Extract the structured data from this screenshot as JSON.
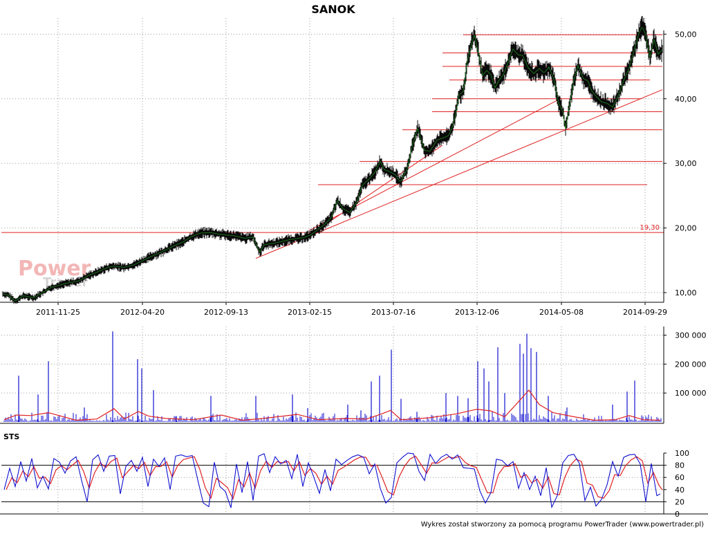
{
  "chart_data": [
    {
      "type": "line",
      "title": "SANOK",
      "x_ticks": [
        "2011-11-25",
        "2012-04-20",
        "2012-09-13",
        "2013-02-15",
        "2013-07-16",
        "2013-12-06",
        "2014-05-08",
        "2014-09-29"
      ],
      "y_ticks": [
        "10,00",
        "20,00",
        "30,00",
        "40,00",
        "50,00"
      ],
      "ylim": [
        8.5,
        52.5
      ],
      "grid": true,
      "reference_line": {
        "value": 19.3,
        "label": "19,30",
        "color": "#e02020"
      },
      "price_path": [
        [
          0,
          9.8
        ],
        [
          8,
          9.6
        ],
        [
          18,
          8.7
        ],
        [
          30,
          9.5
        ],
        [
          45,
          9.2
        ],
        [
          70,
          10.8
        ],
        [
          90,
          11.4
        ],
        [
          110,
          11.8
        ],
        [
          125,
          12.7
        ],
        [
          135,
          13.1
        ],
        [
          150,
          13.8
        ],
        [
          160,
          14.1
        ],
        [
          175,
          13.9
        ],
        [
          190,
          14.3
        ],
        [
          205,
          15.1
        ],
        [
          215,
          15.6
        ],
        [
          230,
          16.3
        ],
        [
          245,
          17.1
        ],
        [
          260,
          17.8
        ],
        [
          272,
          18.6
        ],
        [
          285,
          19.2
        ],
        [
          300,
          19.3
        ],
        [
          315,
          19.0
        ],
        [
          335,
          18.8
        ],
        [
          350,
          18.4
        ],
        [
          362,
          18.6
        ],
        [
          368,
          17.1
        ],
        [
          372,
          16.3
        ],
        [
          378,
          17.4
        ],
        [
          395,
          17.7
        ],
        [
          415,
          18.2
        ],
        [
          435,
          18.5
        ],
        [
          445,
          18.9
        ],
        [
          455,
          19.7
        ],
        [
          465,
          20.5
        ],
        [
          475,
          21.6
        ],
        [
          484,
          24.2
        ],
        [
          492,
          23.0
        ],
        [
          502,
          22.4
        ],
        [
          512,
          24.0
        ],
        [
          520,
          26.6
        ],
        [
          530,
          27.6
        ],
        [
          538,
          28.6
        ],
        [
          546,
          30.3
        ],
        [
          552,
          29.0
        ],
        [
          560,
          28.7
        ],
        [
          568,
          28.2
        ],
        [
          575,
          27.1
        ],
        [
          585,
          29.1
        ],
        [
          592,
          32.6
        ],
        [
          600,
          35.4
        ],
        [
          610,
          32.0
        ],
        [
          618,
          31.9
        ],
        [
          628,
          33.6
        ],
        [
          636,
          33.9
        ],
        [
          645,
          34.3
        ],
        [
          650,
          35.6
        ],
        [
          654,
          37.1
        ],
        [
          660,
          40.6
        ],
        [
          666,
          41.1
        ],
        [
          672,
          45.9
        ],
        [
          678,
          48.4
        ],
        [
          682,
          49.9
        ],
        [
          688,
          47.1
        ],
        [
          694,
          43.6
        ],
        [
          700,
          44.4
        ],
        [
          706,
          43.7
        ],
        [
          712,
          41.7
        ],
        [
          718,
          42.9
        ],
        [
          724,
          43.7
        ],
        [
          730,
          45.4
        ],
        [
          738,
          47.7
        ],
        [
          745,
          46.8
        ],
        [
          752,
          46.7
        ],
        [
          760,
          44.8
        ],
        [
          768,
          43.9
        ],
        [
          776,
          44.7
        ],
        [
          783,
          44.0
        ],
        [
          790,
          44.9
        ],
        [
          797,
          43.1
        ],
        [
          804,
          39.3
        ],
        [
          810,
          38.0
        ],
        [
          814,
          35.4
        ],
        [
          820,
          39.1
        ],
        [
          826,
          42.9
        ],
        [
          832,
          45.1
        ],
        [
          840,
          43.1
        ],
        [
          846,
          42.8
        ],
        [
          852,
          41.2
        ],
        [
          858,
          40.4
        ],
        [
          866,
          39.5
        ],
        [
          874,
          39.3
        ],
        [
          882,
          38.7
        ],
        [
          890,
          40.4
        ],
        [
          898,
          42.8
        ],
        [
          906,
          44.8
        ],
        [
          914,
          47.8
        ],
        [
          920,
          50.1
        ],
        [
          925,
          51.2
        ],
        [
          930,
          49.9
        ],
        [
          936,
          46.4
        ],
        [
          942,
          49.2
        ],
        [
          948,
          46.9
        ],
        [
          954,
          47.6
        ]
      ],
      "horizontal_levels": [
        {
          "value": 49.9,
          "x_from": 670,
          "x_to": 958
        },
        {
          "value": 47.1,
          "x_from": 640,
          "x_to": 948
        },
        {
          "value": 45.0,
          "x_from": 640,
          "x_to": 958
        },
        {
          "value": 42.9,
          "x_from": 650,
          "x_to": 940
        },
        {
          "value": 40.0,
          "x_from": 625,
          "x_to": 928
        },
        {
          "value": 38.0,
          "x_from": 625,
          "x_to": 958
        },
        {
          "value": 35.2,
          "x_from": 582,
          "x_to": 958
        },
        {
          "value": 30.3,
          "x_from": 520,
          "x_to": 958
        },
        {
          "value": 26.7,
          "x_from": 460,
          "x_to": 936
        }
      ],
      "trend_lines": [
        {
          "from": [
            370,
            15.3
          ],
          "to": [
            958,
            41.4
          ]
        },
        {
          "from": [
            447,
            19.6
          ],
          "to": [
            812,
            40.1
          ]
        },
        {
          "from": [
            470,
            20.5
          ],
          "to": [
            640,
            32.8
          ]
        }
      ]
    },
    {
      "type": "bar",
      "y_ticks": [
        "100 000",
        "200 000",
        "300 000"
      ],
      "ylim": [
        0,
        330000
      ],
      "spikes": [
        [
          27,
          160000
        ],
        [
          55,
          95000
        ],
        [
          70,
          210000
        ],
        [
          122,
          50000
        ],
        [
          163,
          313000
        ],
        [
          199,
          217000
        ],
        [
          205,
          185000
        ],
        [
          222,
          110000
        ],
        [
          255,
          20000
        ],
        [
          305,
          90000
        ],
        [
          370,
          90000
        ],
        [
          423,
          95000
        ],
        [
          445,
          48000
        ],
        [
          503,
          60000
        ],
        [
          522,
          40000
        ],
        [
          537,
          140000
        ],
        [
          549,
          160000
        ],
        [
          566,
          250000
        ],
        [
          580,
          80000
        ],
        [
          603,
          35000
        ],
        [
          645,
          100000
        ],
        [
          662,
          90000
        ],
        [
          677,
          82000
        ],
        [
          691,
          210000
        ],
        [
          700,
          185000
        ],
        [
          707,
          140000
        ],
        [
          720,
          258000
        ],
        [
          730,
          100000
        ],
        [
          752,
          270000
        ],
        [
          757,
          236000
        ],
        [
          762,
          305000
        ],
        [
          768,
          255000
        ],
        [
          776,
          242000
        ],
        [
          793,
          90000
        ],
        [
          820,
          50000
        ],
        [
          886,
          60000
        ],
        [
          907,
          105000
        ],
        [
          918,
          143000
        ]
      ],
      "avg_path": [
        [
          6,
          8000
        ],
        [
          24,
          24000
        ],
        [
          44,
          22000
        ],
        [
          70,
          32000
        ],
        [
          110,
          6000
        ],
        [
          140,
          10000
        ],
        [
          165,
          46000
        ],
        [
          180,
          10000
        ],
        [
          200,
          36000
        ],
        [
          215,
          20000
        ],
        [
          240,
          12000
        ],
        [
          280,
          8000
        ],
        [
          320,
          24000
        ],
        [
          350,
          6000
        ],
        [
          380,
          12000
        ],
        [
          430,
          26000
        ],
        [
          460,
          8000
        ],
        [
          500,
          12000
        ],
        [
          530,
          10000
        ],
        [
          552,
          28000
        ],
        [
          565,
          40000
        ],
        [
          580,
          8000
        ],
        [
          620,
          14000
        ],
        [
          660,
          28000
        ],
        [
          690,
          44000
        ],
        [
          710,
          38000
        ],
        [
          730,
          18000
        ],
        [
          750,
          70000
        ],
        [
          765,
          110000
        ],
        [
          780,
          60000
        ],
        [
          800,
          32000
        ],
        [
          830,
          18000
        ],
        [
          860,
          6000
        ],
        [
          890,
          8000
        ],
        [
          910,
          22000
        ],
        [
          930,
          8000
        ],
        [
          955,
          6000
        ]
      ],
      "series_colors": {
        "volume": "#1010d0",
        "average": "#e02020"
      }
    },
    {
      "type": "line",
      "title": "STS",
      "y_ticks": [
        "0",
        "20",
        "40",
        "60",
        "80",
        "100"
      ],
      "ylim": [
        0,
        100
      ],
      "reference_levels": [
        20,
        80
      ],
      "k_path": [
        [
          6,
          40
        ],
        [
          14,
          75
        ],
        [
          22,
          45
        ],
        [
          30,
          86
        ],
        [
          38,
          54
        ],
        [
          46,
          91
        ],
        [
          54,
          43
        ],
        [
          62,
          62
        ],
        [
          70,
          41
        ],
        [
          78,
          91
        ],
        [
          86,
          85
        ],
        [
          94,
          67
        ],
        [
          102,
          87
        ],
        [
          110,
          94
        ],
        [
          118,
          55
        ],
        [
          126,
          20
        ],
        [
          134,
          89
        ],
        [
          142,
          97
        ],
        [
          150,
          70
        ],
        [
          158,
          95
        ],
        [
          166,
          96
        ],
        [
          174,
          33
        ],
        [
          182,
          78
        ],
        [
          190,
          88
        ],
        [
          198,
          70
        ],
        [
          206,
          93
        ],
        [
          214,
          45
        ],
        [
          222,
          90
        ],
        [
          230,
          78
        ],
        [
          238,
          92
        ],
        [
          246,
          40
        ],
        [
          254,
          95
        ],
        [
          262,
          97
        ],
        [
          270,
          94
        ],
        [
          278,
          96
        ],
        [
          286,
          56
        ],
        [
          294,
          18
        ],
        [
          302,
          12
        ],
        [
          310,
          85
        ],
        [
          318,
          45
        ],
        [
          326,
          37
        ],
        [
          334,
          10
        ],
        [
          342,
          82
        ],
        [
          350,
          35
        ],
        [
          358,
          86
        ],
        [
          366,
          22
        ],
        [
          374,
          95
        ],
        [
          382,
          99
        ],
        [
          390,
          68
        ],
        [
          398,
          94
        ],
        [
          406,
          82
        ],
        [
          414,
          88
        ],
        [
          422,
          58
        ],
        [
          430,
          98
        ],
        [
          438,
          45
        ],
        [
          446,
          84
        ],
        [
          454,
          60
        ],
        [
          462,
          34
        ],
        [
          470,
          73
        ],
        [
          478,
          38
        ],
        [
          486,
          90
        ],
        [
          494,
          81
        ],
        [
          502,
          88
        ],
        [
          510,
          94
        ],
        [
          518,
          97
        ],
        [
          526,
          93
        ],
        [
          534,
          66
        ],
        [
          542,
          82
        ],
        [
          550,
          42
        ],
        [
          558,
          18
        ],
        [
          566,
          27
        ],
        [
          574,
          84
        ],
        [
          582,
          93
        ],
        [
          590,
          100
        ],
        [
          598,
          99
        ],
        [
          606,
          70
        ],
        [
          614,
          55
        ],
        [
          622,
          98
        ],
        [
          630,
          83
        ],
        [
          638,
          93
        ],
        [
          646,
          98
        ],
        [
          654,
          90
        ],
        [
          662,
          97
        ],
        [
          670,
          76
        ],
        [
          678,
          75
        ],
        [
          686,
          74
        ],
        [
          694,
          38
        ],
        [
          702,
          18
        ],
        [
          710,
          35
        ],
        [
          718,
          90
        ],
        [
          726,
          88
        ],
        [
          734,
          79
        ],
        [
          742,
          86
        ],
        [
          750,
          42
        ],
        [
          758,
          68
        ],
        [
          766,
          40
        ],
        [
          774,
          62
        ],
        [
          782,
          30
        ],
        [
          790,
          76
        ],
        [
          798,
          11
        ],
        [
          806,
          30
        ],
        [
          814,
          84
        ],
        [
          822,
          96
        ],
        [
          830,
          98
        ],
        [
          838,
          83
        ],
        [
          846,
          22
        ],
        [
          854,
          44
        ],
        [
          862,
          13
        ],
        [
          870,
          24
        ],
        [
          878,
          48
        ],
        [
          886,
          86
        ],
        [
          894,
          62
        ],
        [
          902,
          93
        ],
        [
          910,
          97
        ],
        [
          918,
          98
        ],
        [
          926,
          82
        ],
        [
          934,
          20
        ],
        [
          942,
          83
        ],
        [
          950,
          30
        ],
        [
          955,
          33
        ]
      ],
      "series_colors": {
        "k": "#1010d0",
        "d": "#e02020"
      }
    }
  ],
  "watermark": {
    "power": "Power",
    "trader": "Trader"
  },
  "footer": "Wykres został stworzony za pomocą programu PowerTrader (www.powertrader.pl)"
}
